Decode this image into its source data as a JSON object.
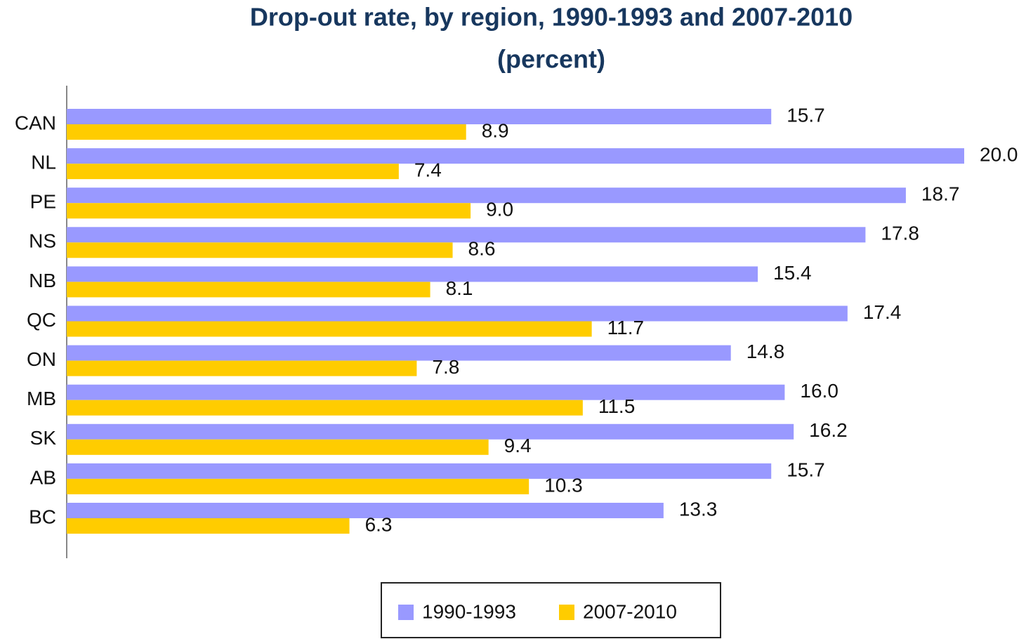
{
  "chart_data": {
    "type": "hbar",
    "title": "Drop-out rate, by region, 1990-1993 and 2007-2010",
    "subtitle": "(percent)",
    "categories": [
      "CAN",
      "NL",
      "PE",
      "NS",
      "NB",
      "QC",
      "ON",
      "MB",
      "SK",
      "AB",
      "BC"
    ],
    "series": [
      {
        "name": "1990-1993",
        "color": "#9999ff",
        "values": [
          15.7,
          20.0,
          18.7,
          17.8,
          15.4,
          17.4,
          14.8,
          16.0,
          16.2,
          15.7,
          13.3
        ],
        "value_labels": [
          "15.7",
          "20.0",
          "18.7",
          "17.8",
          "15.4",
          "17.4",
          "14.8",
          "16.0",
          "16.2",
          "15.7",
          "13.3"
        ]
      },
      {
        "name": "2007-2010",
        "color": "#ffcc00",
        "values": [
          8.9,
          7.4,
          9.0,
          8.6,
          8.1,
          11.7,
          7.8,
          11.5,
          9.4,
          10.3,
          6.3
        ],
        "value_labels": [
          "8.9",
          "7.4",
          "9.0",
          "8.6",
          "8.1",
          "11.7",
          "7.8",
          "11.5",
          "9.4",
          "10.3",
          "6.3"
        ]
      }
    ],
    "xlim": [
      0,
      20
    ],
    "legend": "bottom"
  }
}
